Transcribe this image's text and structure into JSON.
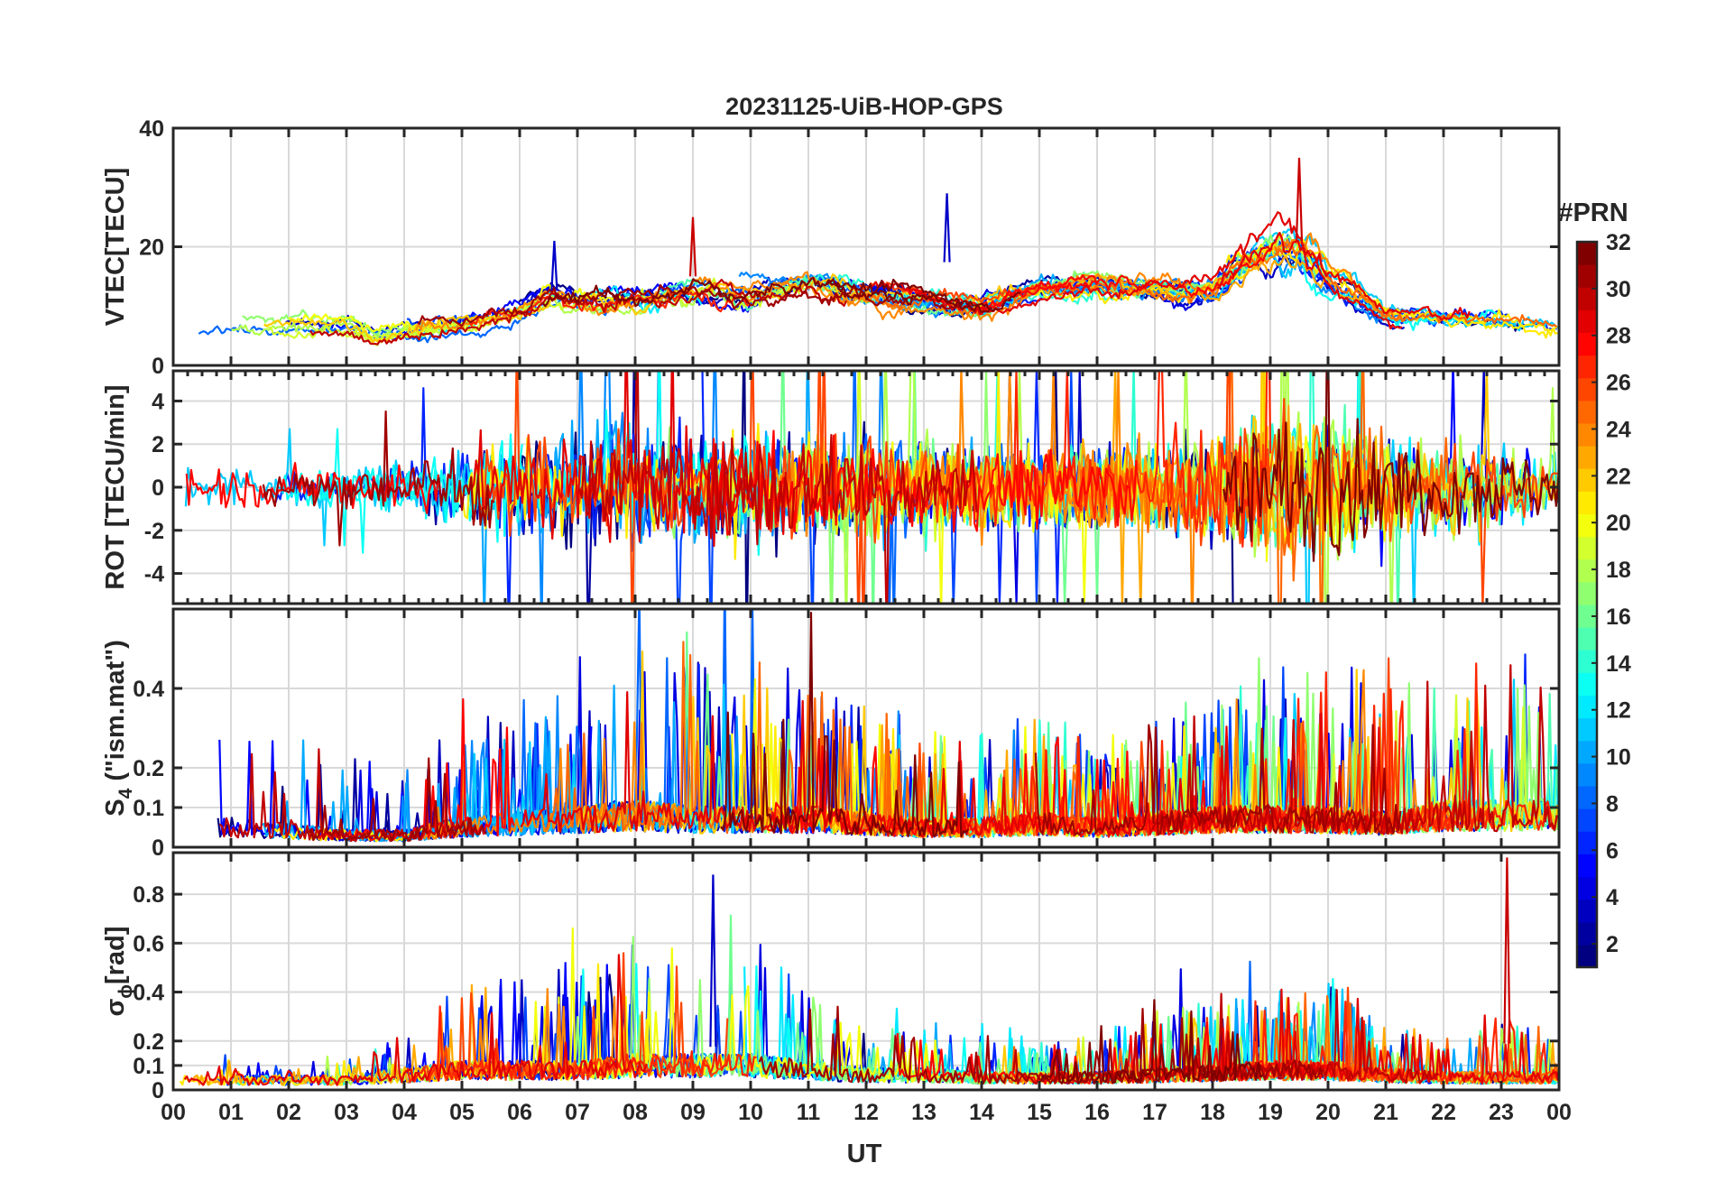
{
  "chart_data": {
    "type": "line",
    "title": "20231125-UiB-HOP-GPS",
    "xlabel": "UT",
    "x_tick_labels": [
      "00",
      "01",
      "02",
      "03",
      "04",
      "05",
      "06",
      "07",
      "08",
      "09",
      "10",
      "11",
      "12",
      "13",
      "14",
      "15",
      "16",
      "17",
      "18",
      "19",
      "20",
      "21",
      "22",
      "23",
      "00"
    ],
    "xlim": [
      0,
      24
    ],
    "grid": true,
    "colorbar": {
      "label": "#PRN",
      "range": [
        1,
        32
      ],
      "ticks": [
        2,
        4,
        6,
        8,
        10,
        12,
        14,
        16,
        18,
        20,
        22,
        24,
        26,
        28,
        30,
        32
      ],
      "tick_labels": [
        "2",
        "4",
        "6",
        "8",
        "10",
        "12",
        "14",
        "16",
        "18",
        "20",
        "22",
        "24",
        "26",
        "28",
        "30",
        "32"
      ],
      "colormap": "jet",
      "location": "right"
    },
    "panels": [
      {
        "id": "vtec",
        "ylabel": "VTEC[TECU]",
        "ylim": [
          0,
          40
        ],
        "yticks": [
          0,
          20,
          40
        ],
        "ytick_labels": [
          "0",
          "20",
          "40"
        ],
        "envelope": {
          "hours": [
            0,
            1,
            2,
            3,
            3.5,
            4,
            5,
            6,
            6.5,
            7,
            8,
            9,
            10,
            11,
            12,
            13,
            14,
            15,
            16,
            17,
            18,
            18.5,
            19,
            19.5,
            20,
            21,
            22,
            23,
            24
          ],
          "mean": [
            7,
            7,
            7,
            7,
            5,
            6,
            7,
            9,
            12,
            11,
            11,
            13,
            12,
            14,
            12,
            11,
            10,
            13,
            14,
            13,
            13,
            17,
            20,
            21,
            16,
            9,
            8,
            8,
            6
          ],
          "spread": [
            3,
            3,
            3,
            3,
            2.5,
            3,
            3,
            4,
            5,
            5,
            6,
            7,
            5,
            5,
            5,
            4,
            4,
            4,
            5,
            5,
            6,
            9,
            11,
            12,
            8,
            4,
            3,
            3,
            2
          ]
        },
        "peaks": [
          {
            "hour": 6.6,
            "value": 21
          },
          {
            "hour": 9.0,
            "value": 25
          },
          {
            "hour": 13.4,
            "value": 29
          },
          {
            "hour": 19.5,
            "value": 35
          }
        ]
      },
      {
        "id": "rot",
        "ylabel": "ROT [TECU/min]",
        "ylim": [
          -5.4,
          5.4
        ],
        "yticks": [
          -4,
          -2,
          0,
          2,
          4
        ],
        "ytick_labels": [
          "-4",
          "-2",
          "0",
          "2",
          "4"
        ],
        "envelope": {
          "hours": [
            0,
            1,
            2,
            3,
            4,
            5,
            6,
            7,
            8,
            9,
            10,
            11,
            12,
            13,
            14,
            15,
            16,
            17,
            18,
            19,
            20,
            21,
            22,
            23,
            24
          ],
          "amplitude": [
            1.2,
            1.0,
            0.9,
            0.9,
            1.3,
            2.0,
            2.3,
            2.4,
            2.6,
            2.5,
            2.6,
            2.4,
            2.4,
            2.0,
            1.8,
            1.8,
            1.8,
            2.0,
            2.6,
            3.6,
            3.2,
            2.4,
            2.0,
            1.8,
            1.5
          ]
        }
      },
      {
        "id": "s4",
        "ylabel_main": "S",
        "ylabel_sub": "4",
        "ylabel_rest": " (\"ism.mat\")",
        "ylim": [
          0,
          0.6
        ],
        "yticks": [
          0,
          0.1,
          0.2,
          0.4
        ],
        "ytick_labels": [
          "0",
          "0.1",
          "0.2",
          "0.4"
        ],
        "envelope": {
          "hours": [
            0,
            1,
            2,
            3,
            4,
            5,
            6,
            7,
            8,
            9,
            10,
            11,
            12,
            13,
            14,
            15,
            16,
            17,
            18,
            19,
            20,
            21,
            22,
            23,
            24
          ],
          "base": [
            0.05,
            0.05,
            0.04,
            0.03,
            0.03,
            0.05,
            0.06,
            0.07,
            0.08,
            0.07,
            0.07,
            0.07,
            0.06,
            0.05,
            0.05,
            0.06,
            0.05,
            0.06,
            0.07,
            0.07,
            0.07,
            0.06,
            0.08,
            0.08,
            0.08
          ],
          "burst": [
            0.35,
            0.3,
            0.25,
            0.22,
            0.15,
            0.25,
            0.3,
            0.28,
            0.4,
            0.45,
            0.4,
            0.35,
            0.3,
            0.25,
            0.25,
            0.28,
            0.2,
            0.25,
            0.3,
            0.4,
            0.35,
            0.4,
            0.35,
            0.35,
            0.4
          ]
        }
      },
      {
        "id": "sigma_phi",
        "ylabel_main": "σ",
        "ylabel_sub": "ϕ",
        "ylabel_rest": "[rad]",
        "ylim": [
          0,
          0.97
        ],
        "yticks": [
          0,
          0.1,
          0.2,
          0.4,
          0.6,
          0.8
        ],
        "ytick_labels": [
          "0",
          "0.1",
          "0.2",
          "0.4",
          "0.6",
          "0.8"
        ],
        "envelope": {
          "hours": [
            0,
            1,
            2,
            3,
            4,
            5,
            6,
            7,
            8,
            9,
            10,
            11,
            12,
            13,
            14,
            15,
            16,
            17,
            18,
            19,
            20,
            21,
            22,
            23,
            24
          ],
          "base": [
            0.04,
            0.04,
            0.04,
            0.04,
            0.06,
            0.08,
            0.08,
            0.08,
            0.1,
            0.1,
            0.1,
            0.08,
            0.06,
            0.06,
            0.05,
            0.05,
            0.05,
            0.06,
            0.07,
            0.08,
            0.08,
            0.06,
            0.05,
            0.05,
            0.05
          ],
          "burst": [
            0.08,
            0.1,
            0.08,
            0.08,
            0.2,
            0.35,
            0.4,
            0.45,
            0.55,
            0.55,
            0.5,
            0.3,
            0.2,
            0.2,
            0.15,
            0.15,
            0.2,
            0.3,
            0.3,
            0.3,
            0.4,
            0.2,
            0.15,
            0.3,
            0.15
          ]
        },
        "peaks": [
          {
            "hour": 9.35,
            "value": 0.88
          },
          {
            "hour": 23.1,
            "value": 0.95
          }
        ]
      }
    ]
  }
}
